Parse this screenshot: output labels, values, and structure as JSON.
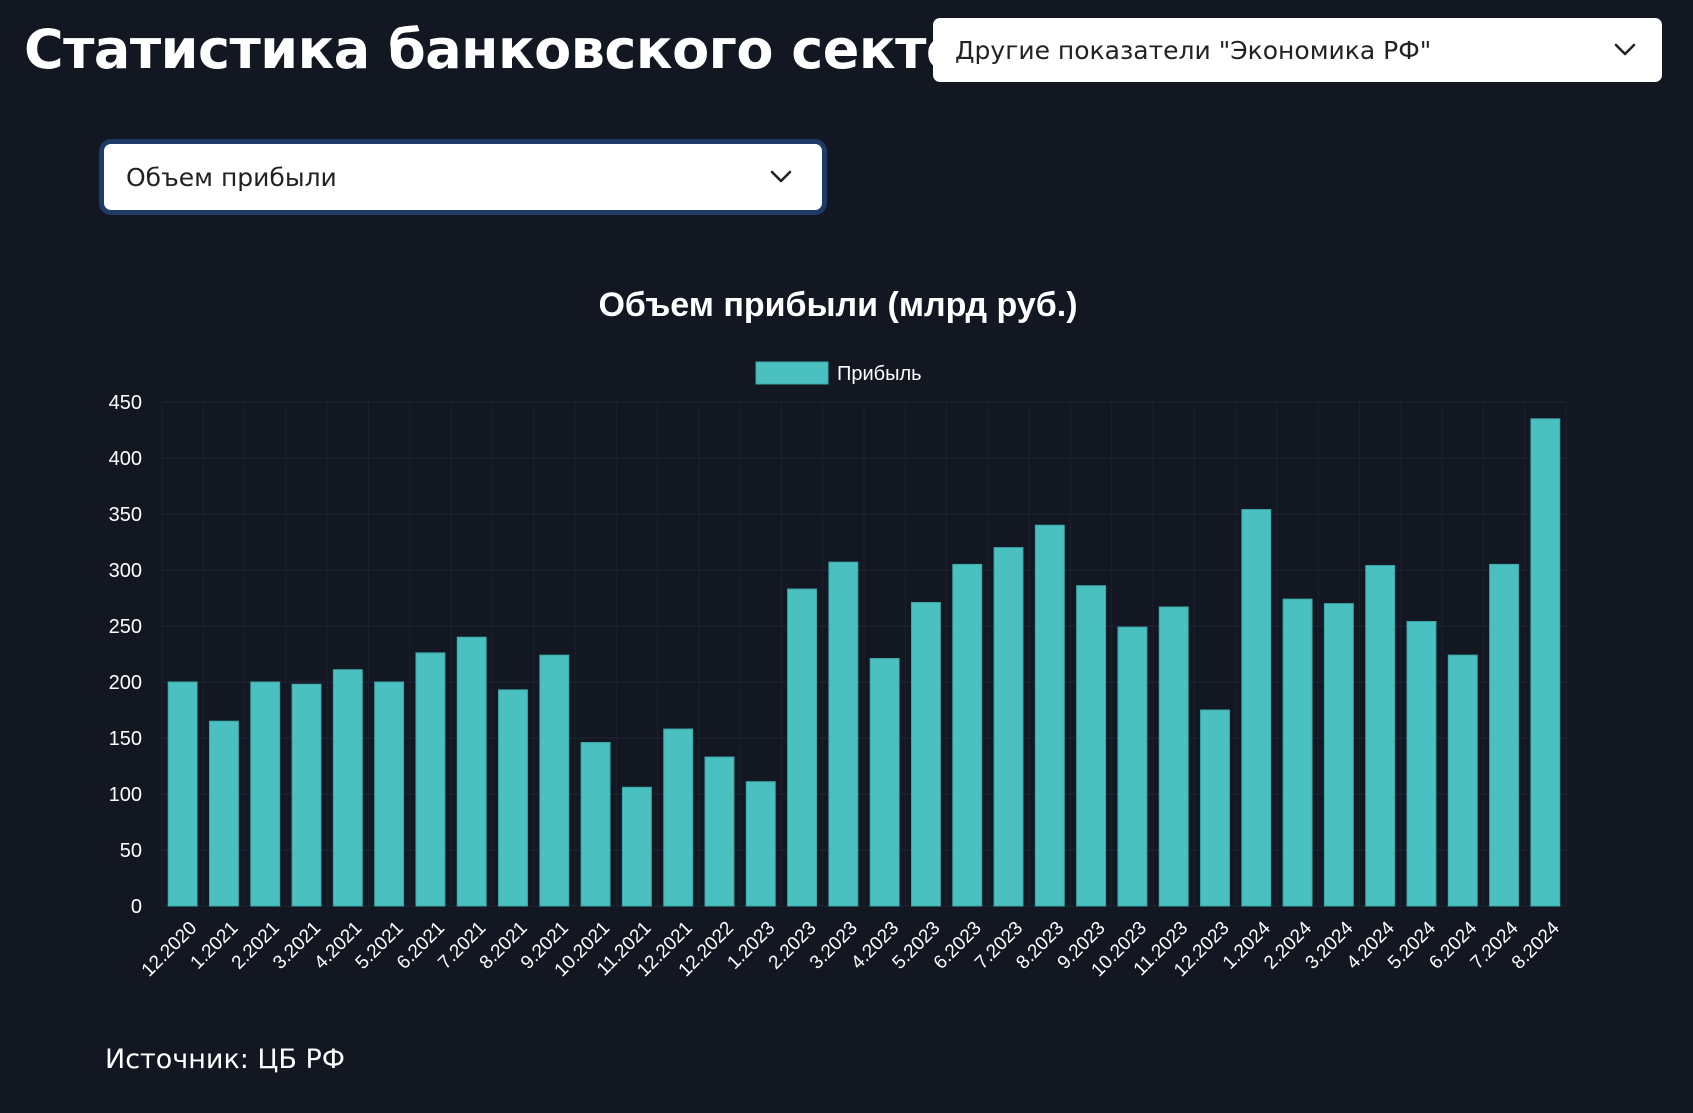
{
  "header": {
    "title": "Статистика банковского сектора",
    "other_indicators_select": "Другие показатели \"Экономика РФ\""
  },
  "metric_select": {
    "value": "Объем прибыли"
  },
  "chart_data": {
    "type": "bar",
    "title": "Объем прибыли (млрд руб.)",
    "xlabel": "",
    "ylabel": "",
    "ylim": [
      0,
      450
    ],
    "yticks": [
      0,
      50,
      100,
      150,
      200,
      250,
      300,
      350,
      400,
      450
    ],
    "legend_position": "top-center",
    "grid": true,
    "categories": [
      "12.2020",
      "1.2021",
      "2.2021",
      "3.2021",
      "4.2021",
      "5.2021",
      "6.2021",
      "7.2021",
      "8.2021",
      "9.2021",
      "10.2021",
      "11.2021",
      "12.2021",
      "12.2022",
      "1.2023",
      "2.2023",
      "3.2023",
      "4.2023",
      "5.2023",
      "6.2023",
      "7.2023",
      "8.2023",
      "9.2023",
      "10.2023",
      "11.2023",
      "12.2023",
      "1.2024",
      "2.2024",
      "3.2024",
      "4.2024",
      "5.2024",
      "6.2024",
      "7.2024",
      "8.2024"
    ],
    "series": [
      {
        "name": "Прибыль",
        "color": "#4bc0c0",
        "values": [
          200,
          165,
          200,
          198,
          211,
          200,
          226,
          240,
          193,
          224,
          146,
          106,
          158,
          133,
          111,
          283,
          307,
          221,
          271,
          305,
          320,
          340,
          286,
          249,
          267,
          175,
          354,
          274,
          270,
          304,
          254,
          224,
          305,
          435
        ]
      }
    ]
  },
  "footer": {
    "source": "Источник: ЦБ РФ"
  }
}
